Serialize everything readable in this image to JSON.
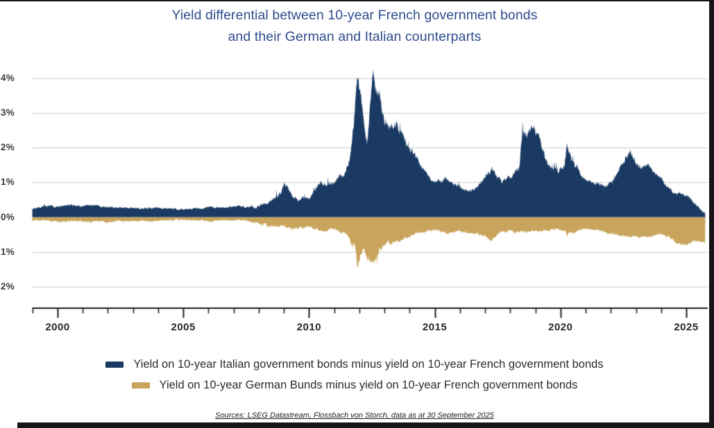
{
  "page": {
    "title_line1": "Yield differential between 10-year French government bonds",
    "title_line2": "and their German and Italian counterparts",
    "source_text": "Sources: LSEG Datastream, Flossbach von Storch, data as at 30 September 2025"
  },
  "colors": {
    "title_blue": "#2e4c8e",
    "navy_series": "#1a3a63",
    "gold_series": "#c8a45c",
    "gridline": "#c8c8c8",
    "axis": "#1c1c1c",
    "frame": "#161616"
  },
  "legend": {
    "items": [
      {
        "label": "Yield on 10-year Italian government bonds minus yield on 10-year French government bonds",
        "color": "#1a3a63",
        "name": "legend-item-italy-minus-france"
      },
      {
        "label": "Yield on 10-year German Bunds minus yield on 10-year French government bonds",
        "color": "#c8a45c",
        "name": "legend-item-germany-minus-france"
      }
    ]
  },
  "chart_data": {
    "type": "area",
    "title": "Yield differential between 10-year French government bonds and their German and Italian counterparts",
    "xlabel": "",
    "ylabel": "",
    "x_range_years": [
      1999,
      2025.75
    ],
    "y_range_pct": [
      -2.7,
      4.45
    ],
    "grid": true,
    "legend_position": "bottom",
    "y_axis": {
      "tick_labels": [
        "4%",
        "3%",
        "2%",
        "1%",
        "0%",
        "1%",
        "2%"
      ],
      "tick_values": [
        4,
        3,
        2,
        1,
        0,
        -1,
        -2
      ],
      "gridline_values": [
        4,
        3,
        2,
        1,
        -1,
        -2
      ]
    },
    "x_axis": {
      "minor_tick_years_start": 1999,
      "minor_tick_years_end": 2025,
      "major_tick_years": [
        2000,
        2005,
        2010,
        2015,
        2020,
        2025
      ],
      "tick_labels": [
        "2000",
        "2005",
        "2010",
        "2015",
        "2020",
        "2025"
      ]
    },
    "series": [
      {
        "name": "Italy minus France (10y, %)",
        "color": "#1a3a63",
        "sign": 1,
        "keypoints": [
          [
            1999.0,
            0.25,
            0.05
          ],
          [
            1999.5,
            0.28,
            0.06
          ],
          [
            2000.0,
            0.3,
            0.05
          ],
          [
            2000.7,
            0.35,
            0.05
          ],
          [
            2001.5,
            0.32,
            0.04
          ],
          [
            2002.0,
            0.28,
            0.04
          ],
          [
            2003.0,
            0.25,
            0.04
          ],
          [
            2004.0,
            0.26,
            0.04
          ],
          [
            2005.0,
            0.22,
            0.03
          ],
          [
            2005.8,
            0.28,
            0.04
          ],
          [
            2006.5,
            0.3,
            0.04
          ],
          [
            2007.0,
            0.28,
            0.05
          ],
          [
            2007.5,
            0.3,
            0.05
          ],
          [
            2008.0,
            0.35,
            0.07
          ],
          [
            2008.5,
            0.45,
            0.08
          ],
          [
            2008.9,
            0.75,
            0.12
          ],
          [
            2009.05,
            0.95,
            0.12
          ],
          [
            2009.4,
            0.6,
            0.08
          ],
          [
            2009.8,
            0.52,
            0.07
          ],
          [
            2010.1,
            0.6,
            0.08
          ],
          [
            2010.45,
            1.0,
            0.12
          ],
          [
            2010.65,
            0.85,
            0.1
          ],
          [
            2011.0,
            1.05,
            0.12
          ],
          [
            2011.35,
            1.25,
            0.12
          ],
          [
            2011.6,
            1.55,
            0.15
          ],
          [
            2011.85,
            3.3,
            0.35
          ],
          [
            2011.95,
            4.05,
            0.15
          ],
          [
            2012.1,
            3.1,
            0.3
          ],
          [
            2012.3,
            2.1,
            0.2
          ],
          [
            2012.55,
            4.25,
            0.15
          ],
          [
            2012.7,
            3.3,
            0.3
          ],
          [
            2012.9,
            2.9,
            0.25
          ],
          [
            2013.2,
            2.5,
            0.2
          ],
          [
            2013.5,
            2.7,
            0.2
          ],
          [
            2013.8,
            2.3,
            0.2
          ],
          [
            2014.2,
            1.8,
            0.15
          ],
          [
            2014.6,
            1.35,
            0.12
          ],
          [
            2015.0,
            1.0,
            0.1
          ],
          [
            2015.4,
            1.1,
            0.12
          ],
          [
            2015.8,
            0.95,
            0.1
          ],
          [
            2016.3,
            0.72,
            0.08
          ],
          [
            2016.7,
            0.85,
            0.1
          ],
          [
            2017.0,
            1.15,
            0.1
          ],
          [
            2017.3,
            1.35,
            0.12
          ],
          [
            2017.7,
            1.05,
            0.1
          ],
          [
            2018.0,
            1.2,
            0.1
          ],
          [
            2018.35,
            1.35,
            0.12
          ],
          [
            2018.5,
            2.3,
            0.25
          ],
          [
            2018.85,
            2.7,
            0.2
          ],
          [
            2019.1,
            2.35,
            0.2
          ],
          [
            2019.4,
            1.75,
            0.15
          ],
          [
            2019.6,
            1.4,
            0.12
          ],
          [
            2019.9,
            1.35,
            0.12
          ],
          [
            2020.15,
            1.45,
            0.15
          ],
          [
            2020.25,
            2.3,
            0.3
          ],
          [
            2020.45,
            1.55,
            0.15
          ],
          [
            2020.7,
            1.35,
            0.1
          ],
          [
            2021.0,
            1.05,
            0.08
          ],
          [
            2021.4,
            0.95,
            0.08
          ],
          [
            2021.8,
            0.9,
            0.08
          ],
          [
            2022.1,
            1.1,
            0.1
          ],
          [
            2022.4,
            1.5,
            0.12
          ],
          [
            2022.75,
            1.9,
            0.12
          ],
          [
            2023.0,
            1.6,
            0.12
          ],
          [
            2023.2,
            1.45,
            0.1
          ],
          [
            2023.45,
            1.55,
            0.1
          ],
          [
            2023.8,
            1.25,
            0.1
          ],
          [
            2024.1,
            1.0,
            0.08
          ],
          [
            2024.5,
            0.75,
            0.07
          ],
          [
            2024.8,
            0.65,
            0.06
          ],
          [
            2025.1,
            0.55,
            0.06
          ],
          [
            2025.4,
            0.35,
            0.05
          ],
          [
            2025.6,
            0.2,
            0.04
          ],
          [
            2025.75,
            0.12,
            0.03
          ]
        ]
      },
      {
        "name": "Germany minus France (10y, %)",
        "color": "#c8a45c",
        "sign": -1,
        "keypoints": [
          [
            1999.0,
            -0.1,
            0.04
          ],
          [
            2000.0,
            -0.12,
            0.04
          ],
          [
            2001.0,
            -0.13,
            0.04
          ],
          [
            2002.0,
            -0.12,
            0.04
          ],
          [
            2003.0,
            -0.1,
            0.03
          ],
          [
            2004.0,
            -0.1,
            0.03
          ],
          [
            2005.0,
            -0.08,
            0.03
          ],
          [
            2006.0,
            -0.1,
            0.03
          ],
          [
            2007.0,
            -0.1,
            0.03
          ],
          [
            2007.6,
            -0.12,
            0.04
          ],
          [
            2008.0,
            -0.18,
            0.06
          ],
          [
            2008.8,
            -0.3,
            0.08
          ],
          [
            2009.1,
            -0.35,
            0.08
          ],
          [
            2009.5,
            -0.3,
            0.06
          ],
          [
            2010.0,
            -0.3,
            0.06
          ],
          [
            2010.45,
            -0.38,
            0.07
          ],
          [
            2011.0,
            -0.35,
            0.07
          ],
          [
            2011.5,
            -0.45,
            0.08
          ],
          [
            2011.85,
            -0.95,
            0.2
          ],
          [
            2011.95,
            -1.45,
            0.3
          ],
          [
            2012.15,
            -1.05,
            0.2
          ],
          [
            2012.4,
            -1.15,
            0.25
          ],
          [
            2012.6,
            -1.35,
            0.25
          ],
          [
            2012.8,
            -0.95,
            0.15
          ],
          [
            2013.1,
            -0.75,
            0.1
          ],
          [
            2013.5,
            -0.65,
            0.08
          ],
          [
            2014.0,
            -0.55,
            0.07
          ],
          [
            2014.5,
            -0.45,
            0.06
          ],
          [
            2015.0,
            -0.4,
            0.06
          ],
          [
            2015.5,
            -0.45,
            0.06
          ],
          [
            2016.0,
            -0.4,
            0.06
          ],
          [
            2016.5,
            -0.45,
            0.06
          ],
          [
            2017.0,
            -0.55,
            0.08
          ],
          [
            2017.25,
            -0.68,
            0.08
          ],
          [
            2017.6,
            -0.45,
            0.06
          ],
          [
            2018.0,
            -0.4,
            0.06
          ],
          [
            2018.5,
            -0.45,
            0.06
          ],
          [
            2019.0,
            -0.42,
            0.05
          ],
          [
            2019.5,
            -0.35,
            0.05
          ],
          [
            2020.0,
            -0.35,
            0.06
          ],
          [
            2020.25,
            -0.48,
            0.08
          ],
          [
            2020.6,
            -0.4,
            0.05
          ],
          [
            2021.0,
            -0.35,
            0.04
          ],
          [
            2021.5,
            -0.37,
            0.04
          ],
          [
            2022.0,
            -0.48,
            0.06
          ],
          [
            2022.5,
            -0.55,
            0.06
          ],
          [
            2023.0,
            -0.55,
            0.05
          ],
          [
            2023.5,
            -0.55,
            0.05
          ],
          [
            2024.0,
            -0.5,
            0.05
          ],
          [
            2024.45,
            -0.62,
            0.06
          ],
          [
            2024.6,
            -0.75,
            0.06
          ],
          [
            2025.0,
            -0.78,
            0.06
          ],
          [
            2025.3,
            -0.7,
            0.06
          ],
          [
            2025.6,
            -0.72,
            0.05
          ],
          [
            2025.75,
            -0.75,
            0.04
          ]
        ]
      }
    ]
  }
}
